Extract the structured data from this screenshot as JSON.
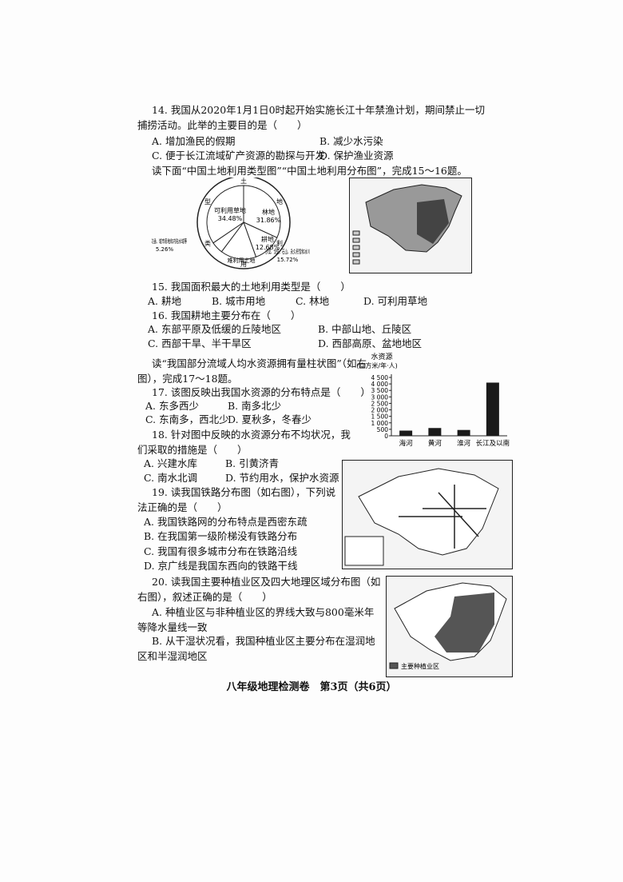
{
  "q14": {
    "stem": "14. 我国从2020年1月1日0时起开始实施长江十年禁渔计划，期间禁止一切捕捞活动。此举的主要目的是（　　）",
    "options": [
      "A. 增加渔民的假期",
      "B. 减少水污染",
      "C. 便于长江流域矿产资源的勘探与开发",
      "D. 保护渔业资源"
    ]
  },
  "intro_15_16": "读下面“中国土地利用类型图”“中国土地利用分布图”，完成15～16题。",
  "fig_landuse": {
    "chart_data": {
      "type": "pie",
      "ring_text": [
        "土",
        "地",
        "利",
        "用",
        "类",
        "型"
      ],
      "group_label": "难利用土地",
      "segments": [
        {
          "name": "林地",
          "value": 31.86,
          "value_label": "31.86%",
          "color": "#ffffff"
        },
        {
          "name": "耕地",
          "value": 12.68,
          "value_label": "12.68%",
          "color": "#ffffff"
        },
        {
          "name": "沙漠、戈壁、石山、永久积雪和冰川",
          "value": 15.72,
          "value_label": "15.72%",
          "color": "#ffffff"
        },
        {
          "name": "工矿、交通、城市用地和内陆水域等",
          "value": 5.26,
          "value_label": "5.26%",
          "color": "#ffffff"
        },
        {
          "name": "可利用草地",
          "value": 34.48,
          "value_label": "34.48%",
          "color": "#ffffff"
        }
      ]
    }
  },
  "q15": {
    "stem": "15. 我国面积最大的土地利用类型是（　　）",
    "options": [
      "A. 耕地",
      "B. 城市用地",
      "C. 林地",
      "D. 可利用草地"
    ]
  },
  "q16": {
    "stem": "16. 我国耕地主要分布在（　　）",
    "options": [
      "A. 东部平原及低缓的丘陵地区",
      "B. 中部山地、丘陵区",
      "C. 西部干旱、半干旱区",
      "D. 西部高原、盆地地区"
    ]
  },
  "intro_17_18": "读“我国部分流域人均水资源拥有量柱状图”（如右图），完成17～18题。",
  "fig_water": {
    "chart_data": {
      "type": "bar",
      "title": "水资源",
      "unit": "(立方米/年·人)",
      "categories": [
        "海河",
        "黄河",
        "淮河",
        "长江及以南"
      ],
      "values": [
        400,
        600,
        450,
        4100
      ],
      "color": "#1a1a1a",
      "ylim": [
        0,
        4500
      ],
      "yticks": [
        0,
        500,
        {
          "value": 1000,
          "label": "1 000"
        },
        {
          "value": 1500,
          "label": "1 500"
        },
        {
          "value": 2000,
          "label": "2 000"
        },
        {
          "value": 2500,
          "label": "2 500"
        },
        {
          "value": 3000,
          "label": "3 000"
        },
        {
          "value": 3500,
          "label": "3 500"
        },
        {
          "value": 4000,
          "label": "4 000"
        },
        {
          "value": 4500,
          "label": "4 500"
        }
      ]
    }
  },
  "q17": {
    "stem": "17. 该图反映出我国水资源的分布特点是（　　）",
    "options": [
      "A. 东多西少",
      "B. 南多北少",
      "C. 东南多，西北少",
      "D. 夏秋多，冬春少"
    ]
  },
  "q18": {
    "stem": "18. 针对图中反映的水资源分布不均状况，我们采取的措施是（　　）",
    "options": [
      "A. 兴建水库",
      "B. 引黄济青",
      "C. 南水北调",
      "D. 节约用水，保护水资源"
    ]
  },
  "q19": {
    "stem": "19. 读我国铁路分布图（如右图），下列说法正确的是（　　）",
    "options": [
      "A. 我国铁路网的分布特点是西密东疏",
      "B. 在我国第一级阶梯没有铁路分布",
      "C. 我国有很多城市分布在铁路沿线",
      "D. 京广线是我国东西向的铁路干线"
    ]
  },
  "q20": {
    "stem": "20. 读我国主要种植业区及四大地理区域分布图（如右图），叙述正确的是（　　）",
    "options": [
      "A. 种植业区与非种植业区的界线大致与800毫米年等降水量线一致",
      "B. 从干湿状况看，我国种植业区主要分布在湿润地区和半湿润地区"
    ]
  },
  "fig_crop": {
    "legend": "主要种植业区"
  },
  "footer": "八年级地理检测卷　第3页（共6页）"
}
